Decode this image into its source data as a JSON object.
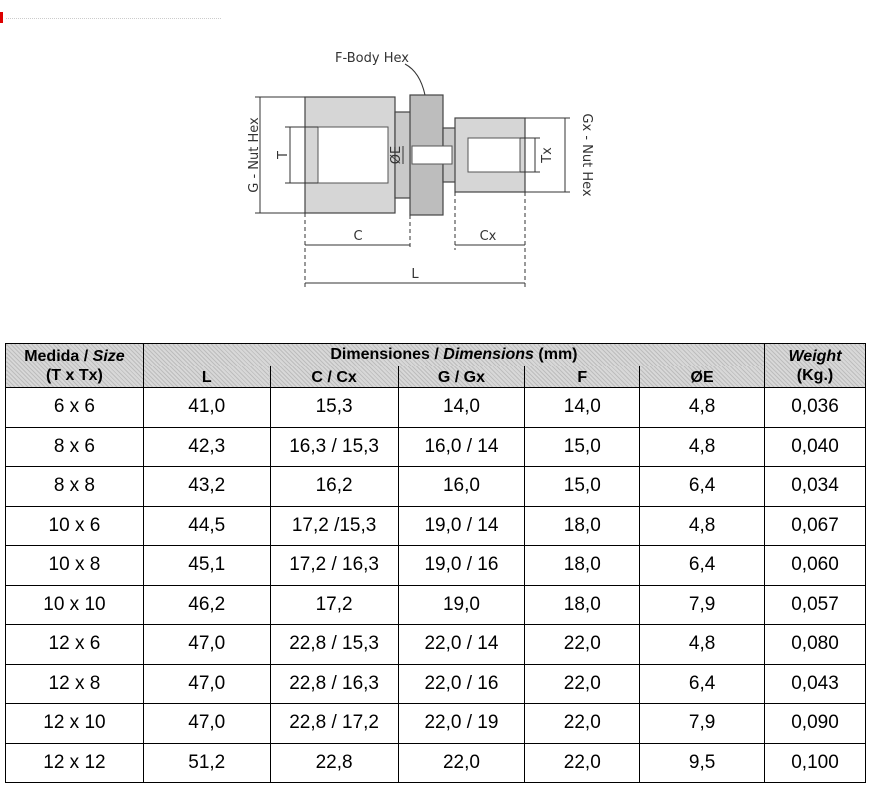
{
  "diagram": {
    "labels": {
      "body_hex": "F-Body Hex",
      "nut_hex": "G - Nut Hex",
      "t": "T",
      "e": "ØE",
      "tx": "Tx",
      "nut_hex_x": "Gx - Nut Hex",
      "c": "C",
      "cx": "Cx",
      "l": "L"
    }
  },
  "table": {
    "header": {
      "size_a": "Medida / ",
      "size_b": "Size",
      "size_c": "(T x Tx)",
      "dims_a": "Dimensiones / ",
      "dims_b": "Dimensions",
      "dims_c": " (mm)",
      "columns": [
        "L",
        "C / Cx",
        "G / Gx",
        "F",
        "ØE"
      ],
      "weight_a": "Weight",
      "weight_b": "(Kg.)"
    },
    "rows": [
      [
        "6 x 6",
        "41,0",
        "15,3",
        "14,0",
        "14,0",
        "4,8",
        "0,036"
      ],
      [
        "8 x 6",
        "42,3",
        "16,3 / 15,3",
        "16,0 / 14",
        "15,0",
        "4,8",
        "0,040"
      ],
      [
        "8 x 8",
        "43,2",
        "16,2",
        "16,0",
        "15,0",
        "6,4",
        "0,034"
      ],
      [
        "10 x 6",
        "44,5",
        "17,2 /15,3",
        "19,0 / 14",
        "18,0",
        "4,8",
        "0,067"
      ],
      [
        "10 x 8",
        "45,1",
        "17,2 / 16,3",
        "19,0 / 16",
        "18,0",
        "6,4",
        "0,060"
      ],
      [
        "10 x 10",
        "46,2",
        "17,2",
        "19,0",
        "18,0",
        "7,9",
        "0,057"
      ],
      [
        "12 x 6",
        "47,0",
        "22,8 / 15,3",
        "22,0 / 14",
        "22,0",
        "4,8",
        "0,080"
      ],
      [
        "12 x 8",
        "47,0",
        "22,8 / 16,3",
        "22,0 / 16",
        "22,0",
        "6,4",
        "0,043"
      ],
      [
        "12 x 10",
        "47,0",
        "22,8 / 17,2",
        "22,0 / 19",
        "22,0",
        "7,9",
        "0,090"
      ],
      [
        "12 x 12",
        "51,2",
        "22,8",
        "22,0",
        "22,0",
        "9,5",
        "0,100"
      ]
    ]
  }
}
